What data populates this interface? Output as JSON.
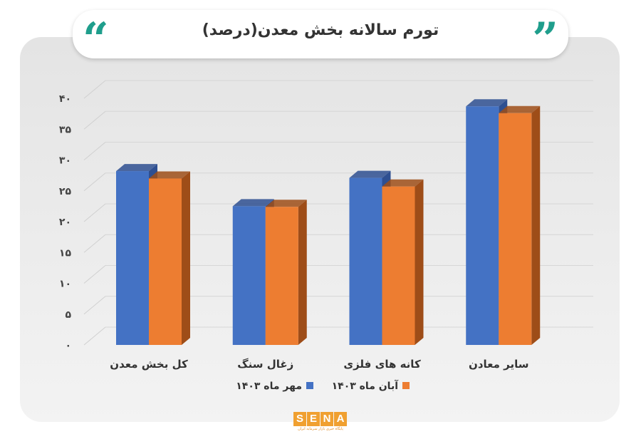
{
  "chart_data": {
    "type": "bar",
    "title": "تورم سالانه بخش معدن(درصد)",
    "categories": [
      "کل بخش معدن",
      "زغال سنگ",
      "کانه های فلزی",
      "سایر معادن"
    ],
    "series": [
      {
        "name": "مهر ماه ۱۴۰۳",
        "values": [
          28.2,
          22.5,
          27.1,
          38.7
        ]
      },
      {
        "name": "آبان ماه ۱۴۰۳",
        "values": [
          27.0,
          22.4,
          25.7,
          37.6
        ]
      }
    ],
    "yticks": [
      "۰",
      "۵",
      "۱۰",
      "۱۵",
      "۲۰",
      "۲۵",
      "۳۰",
      "۳۵",
      "۴۰"
    ],
    "ylim": [
      0,
      40
    ],
    "grid": true,
    "legend_position": "bottom"
  },
  "colors": {
    "series1": "#4472c4",
    "series1_dark": "#2e4f91",
    "series2": "#ed7d31",
    "series2_dark": "#9e4d18",
    "accent": "#1f9e8c"
  },
  "logo": {
    "letters": [
      "S",
      "E",
      "N",
      "A"
    ],
    "subtitle": "پایگاه خبری بازار سرمایه ایران"
  },
  "icons": [
    "quote-open-icon",
    "quote-close-icon"
  ]
}
